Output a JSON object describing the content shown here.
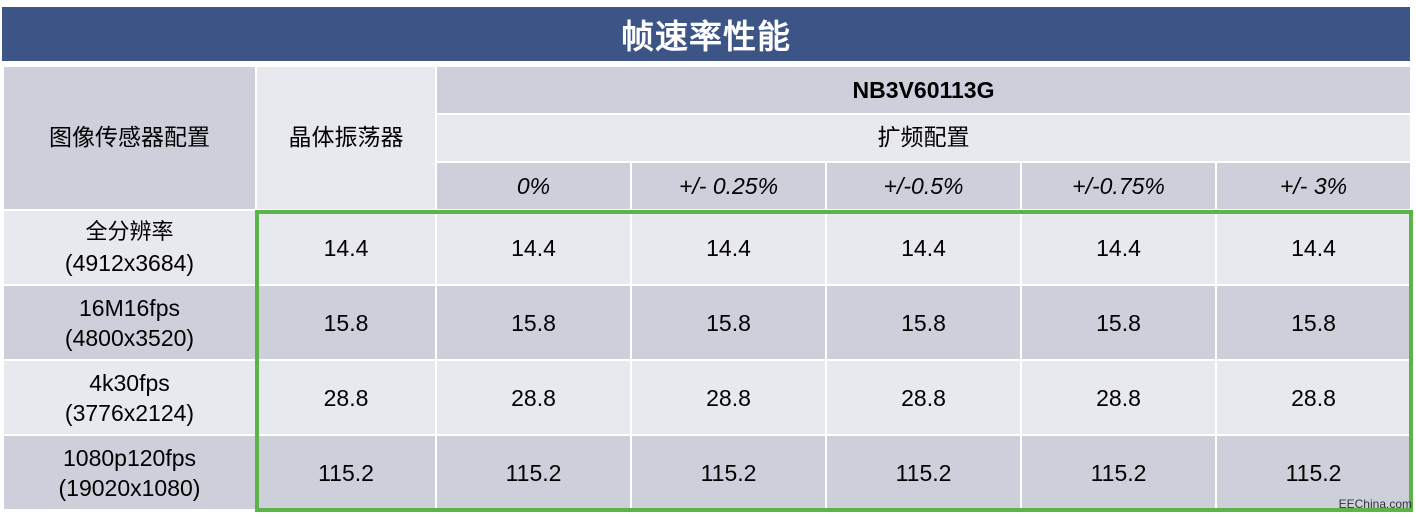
{
  "title": "帧速率性能",
  "headers": {
    "sensor_config": "图像传感器配置",
    "crystal": "晶体振荡器",
    "device": "NB3V60113G",
    "spread_config": "扩频配置",
    "spread_levels": [
      "0%",
      "+/- 0.25%",
      "+/-0.5%",
      "+/-0.75%",
      "+/- 3%"
    ]
  },
  "rows": [
    {
      "name": "全分辨率",
      "resolution": "(4912x3684)",
      "values": [
        "14.4",
        "14.4",
        "14.4",
        "14.4",
        "14.4",
        "14.4"
      ]
    },
    {
      "name": "16M16fps",
      "resolution": "(4800x3520)",
      "values": [
        "15.8",
        "15.8",
        "15.8",
        "15.8",
        "15.8",
        "15.8"
      ]
    },
    {
      "name": "4k30fps",
      "resolution": "(3776x2124)",
      "values": [
        "28.8",
        "28.8",
        "28.8",
        "28.8",
        "28.8",
        "28.8"
      ]
    },
    {
      "name": "1080p120fps",
      "resolution": "(19020x1080)",
      "values": [
        "115.2",
        "115.2",
        "115.2",
        "115.2",
        "115.2",
        "115.2"
      ]
    }
  ],
  "watermark": "EEChina.com",
  "colors": {
    "title_bg": "#3d5586",
    "cell_dark": "#cdd0db",
    "cell_light": "#e8e9ef",
    "highlight": "#5bb447"
  }
}
